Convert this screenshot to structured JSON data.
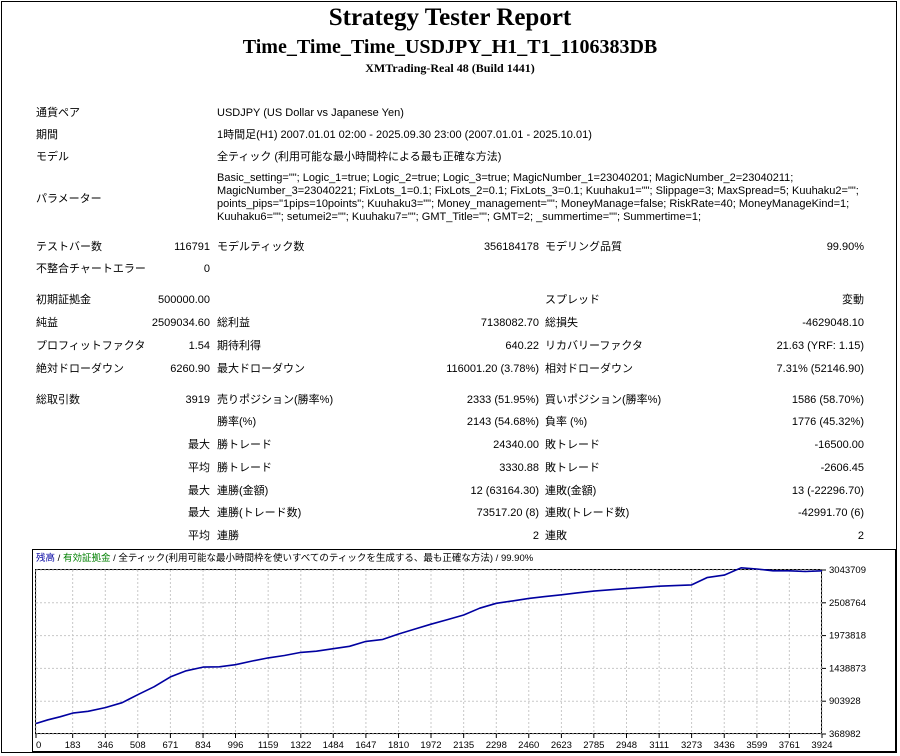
{
  "report": {
    "title": "Strategy Tester Report",
    "subtitle": "Time_Time_Time_USDJPY_H1_T1_1106383DB",
    "server": "XMTrading-Real 48 (Build 1441)"
  },
  "info": {
    "pair_label": "通貨ペア",
    "pair_value": "USDJPY (US Dollar vs Japanese Yen)",
    "period_label": "期間",
    "period_value": "1時間足(H1) 2007.01.01 02:00 - 2025.09.30 23:00 (2007.01.01 - 2025.10.01)",
    "model_label": "モデル",
    "model_value": "全ティック (利用可能な最小時間枠による最も正確な方法)",
    "params_label": "パラメーター",
    "params_lines": [
      "Basic_setting=\"\"; Logic_1=true; Logic_2=true; Logic_3=true; MagicNumber_1=23040201; MagicNumber_2=23040211;",
      "MagicNumber_3=23040221; FixLots_1=0.1; FixLots_2=0.1; FixLots_3=0.1; Kuuhaku1=\"\"; Slippage=3; MaxSpread=5; Kuuhaku2=\"\";",
      "points_pips=\"1pips=10points\"; Kuuhaku3=\"\"; Money_management=\"\"; MoneyManage=false; RiskRate=40; MoneyManageKind=1;",
      "Kuuhaku6=\"\"; setumei2=\"\"; Kuuhaku7=\"\"; GMT_Title=\"\"; GMT=2; _summertime=\"\"; Summertime=1;"
    ]
  },
  "stats": {
    "bars_label": "テストバー数",
    "bars_value": "116791",
    "ticks_label": "モデルティック数",
    "ticks_value": "356184178",
    "quality_label": "モデリング品質",
    "quality_value": "99.90%",
    "mismatch_label": "不整合チャートエラー",
    "mismatch_value": "0",
    "deposit_label": "初期証拠金",
    "deposit_value": "500000.00",
    "spread_label": "スプレッド",
    "spread_value": "変動",
    "net_label": "純益",
    "net_value": "2509034.60",
    "gross_profit_label": "総利益",
    "gross_profit_value": "7138082.70",
    "gross_loss_label": "総損失",
    "gross_loss_value": "-4629048.10",
    "pf_label": "プロフィットファクタ",
    "pf_value": "1.54",
    "expected_label": "期待利得",
    "expected_value": "640.22",
    "recovery_label": "リカバリーファクタ",
    "recovery_value": "21.63 (YRF: 1.15)",
    "abs_dd_label": "絶対ドローダウン",
    "abs_dd_value": "6260.90",
    "max_dd_label": "最大ドローダウン",
    "max_dd_value": "116001.20 (3.78%)",
    "rel_dd_label": "相対ドローダウン",
    "rel_dd_value": "7.31% (52146.90)",
    "trades_label": "総取引数",
    "trades_value": "3919",
    "short_label": "売りポジション(勝率%)",
    "short_value": "2333 (51.95%)",
    "long_label": "買いポジション(勝率%)",
    "long_value": "1586 (58.70%)",
    "win_label": "勝率(%)",
    "win_value": "2143 (54.68%)",
    "loss_label": "負率 (%)",
    "loss_value": "1776 (45.32%)",
    "max_word": "最大",
    "avg_word": "平均",
    "win_trade_label": "勝トレード",
    "max_win_value": "24340.00",
    "loss_trade_label": "敗トレード",
    "max_loss_value": "-16500.00",
    "avg_win_value": "3330.88",
    "avg_loss_value": "-2606.45",
    "consec_win_money_label": "連勝(金額)",
    "consec_win_money_value": "12 (63164.30)",
    "consec_loss_money_label": "連敗(金額)",
    "consec_loss_money_value": "13 (-22296.70)",
    "consec_win_trades_label": "連勝(トレード数)",
    "consec_win_trades_value": "73517.20 (8)",
    "consec_loss_trades_label": "連敗(トレード数)",
    "consec_loss_trades_value": "-42991.70 (6)",
    "avg_consec_win_label": "連勝",
    "avg_consec_win_value": "2",
    "avg_consec_loss_label": "連敗",
    "avg_consec_loss_value": "2"
  },
  "chart_header": {
    "balance": "残高",
    "sep1": " / ",
    "equity": "有効証拠金",
    "sep2": " / ",
    "model": "全ティック(利用可能な最小時間枠を使いすべてのティックを生成する、最も正確な方法)",
    "sep3": " / ",
    "quality": "99.90%"
  },
  "colors": {
    "balance": "#0000a0",
    "equity": "#008000",
    "grid": "#c8c8c8"
  },
  "chart_data": {
    "type": "line",
    "title": "",
    "xlabel": "",
    "ylabel": "",
    "x_ticks": [
      "0",
      "183",
      "346",
      "508",
      "671",
      "834",
      "996",
      "1159",
      "1322",
      "1484",
      "1647",
      "1810",
      "1972",
      "2135",
      "2298",
      "2460",
      "2623",
      "2785",
      "2948",
      "3111",
      "3273",
      "3436",
      "3599",
      "3761",
      "3924"
    ],
    "y_ticks": [
      "3043709",
      "2508764",
      "1973818",
      "1438873",
      "903928",
      "368982"
    ],
    "xlim": [
      0,
      3924
    ],
    "ylim": [
      368982,
      3043709
    ],
    "grid": true,
    "legend": "top-left",
    "series": [
      {
        "name": "残高",
        "x": [
          0,
          60,
          120,
          183,
          260,
          346,
          430,
          508,
          590,
          671,
          750,
          834,
          915,
          996,
          1080,
          1159,
          1240,
          1322,
          1400,
          1484,
          1565,
          1647,
          1730,
          1810,
          1890,
          1972,
          2050,
          2135,
          2215,
          2298,
          2380,
          2460,
          2540,
          2623,
          2700,
          2785,
          2865,
          2948,
          3030,
          3111,
          3190,
          3273,
          3350,
          3436,
          3520,
          3599,
          3680,
          3761,
          3840,
          3924
        ],
        "y": [
          540000,
          600000,
          650000,
          710000,
          740000,
          800000,
          880000,
          1010000,
          1140000,
          1300000,
          1400000,
          1460000,
          1465000,
          1500000,
          1560000,
          1610000,
          1650000,
          1700000,
          1720000,
          1760000,
          1800000,
          1880000,
          1910000,
          2000000,
          2080000,
          2160000,
          2230000,
          2310000,
          2420000,
          2500000,
          2540000,
          2580000,
          2610000,
          2640000,
          2670000,
          2700000,
          2720000,
          2740000,
          2760000,
          2780000,
          2790000,
          2800000,
          2920000,
          2960000,
          3080000,
          3060000,
          3030000,
          3030000,
          3020000,
          3030000
        ]
      }
    ]
  }
}
